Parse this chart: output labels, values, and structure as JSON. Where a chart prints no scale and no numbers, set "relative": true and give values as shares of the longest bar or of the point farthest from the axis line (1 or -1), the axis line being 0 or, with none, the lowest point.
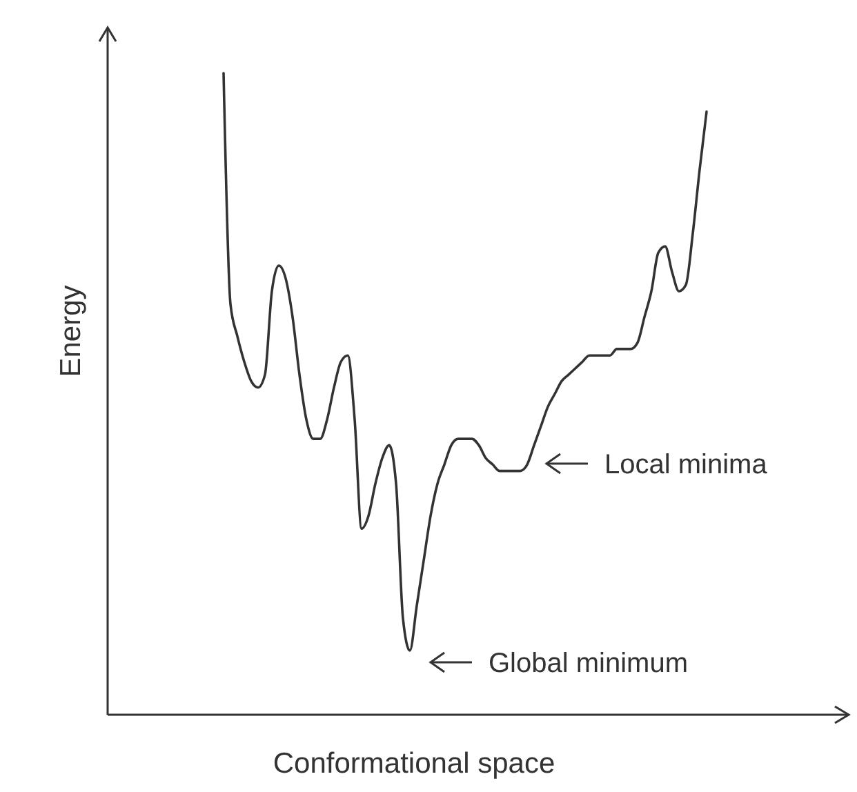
{
  "chart_data": {
    "type": "line",
    "xlabel": "Conformational space",
    "ylabel": "Energy",
    "relative": true,
    "color": "#333333",
    "categories": [
      null,
      null,
      null,
      null,
      null,
      null,
      null,
      null,
      null,
      null,
      null,
      null,
      null,
      null,
      null,
      null,
      null,
      null,
      null,
      null,
      null,
      null,
      null,
      null,
      null,
      null,
      null,
      null,
      null,
      null,
      null,
      null,
      null,
      null,
      null,
      null,
      null,
      null,
      null,
      null,
      null,
      null,
      null,
      null,
      null,
      null,
      null,
      null,
      null,
      null,
      null,
      null,
      null,
      null,
      null,
      null,
      null,
      null,
      null,
      null,
      null,
      null,
      null,
      null,
      null,
      null,
      null,
      null,
      null,
      null,
      null
    ],
    "values": [
      1.0,
      0.64,
      0.59,
      0.55,
      0.52,
      0.51,
      0.53,
      0.66,
      0.7,
      0.68,
      0.62,
      0.53,
      0.46,
      0.43,
      0.43,
      0.46,
      0.51,
      0.55,
      0.56,
      0.46,
      0.29,
      0.31,
      0.36,
      0.4,
      0.42,
      0.36,
      0.15,
      0.1,
      0.17,
      0.24,
      0.31,
      0.36,
      0.39,
      0.42,
      0.43,
      0.43,
      0.43,
      0.42,
      0.4,
      0.39,
      0.38,
      0.38,
      0.38,
      0.38,
      0.39,
      0.42,
      0.45,
      0.48,
      0.5,
      0.52,
      0.53,
      0.54,
      0.55,
      0.56,
      0.56,
      0.56,
      0.56,
      0.57,
      0.57,
      0.57,
      0.58,
      0.62,
      0.66,
      0.72,
      0.73,
      0.69,
      0.66,
      0.67,
      0.75,
      0.85,
      0.94
    ],
    "annotations": [
      "Local minima",
      "Global minimum"
    ]
  }
}
